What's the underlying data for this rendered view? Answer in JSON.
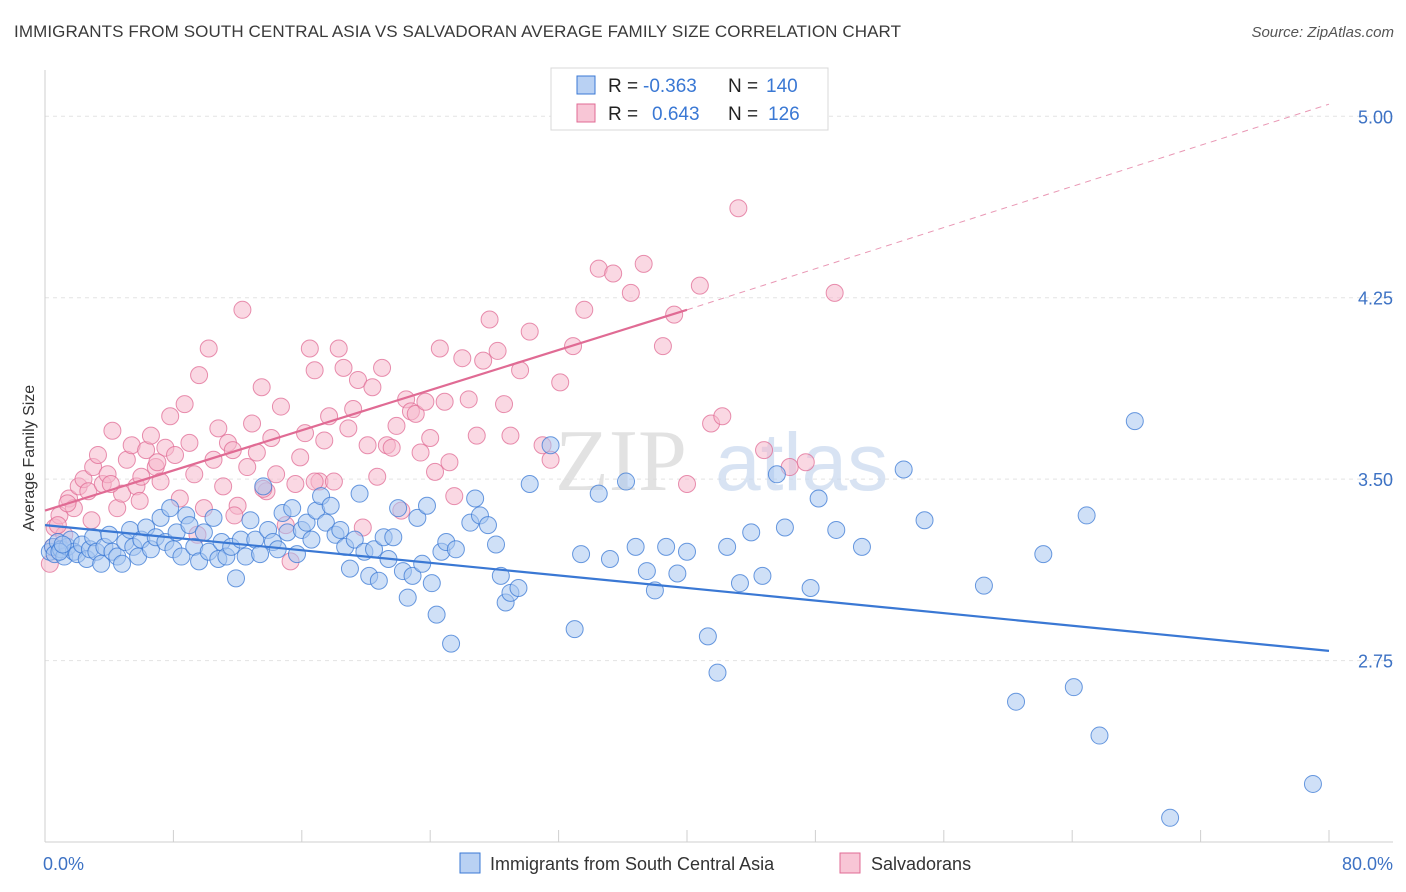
{
  "header": {
    "title": "IMMIGRANTS FROM SOUTH CENTRAL ASIA VS SALVADORAN AVERAGE FAMILY SIZE CORRELATION CHART",
    "source": "Source: ZipAtlas.com"
  },
  "watermark": {
    "part1": "ZIP",
    "part2": "atlas"
  },
  "chart_data": {
    "type": "scatter",
    "title": "IMMIGRANTS FROM SOUTH CENTRAL ASIA VS SALVADORAN AVERAGE FAMILY SIZE CORRELATION CHART",
    "xlabel": "",
    "ylabel": "Average Family Size",
    "xlim": [
      0,
      80
    ],
    "ylim": [
      2.0,
      5.15
    ],
    "x_tick_labels": [
      "0.0%",
      "80.0%"
    ],
    "y_ticks": [
      2.75,
      3.5,
      4.25,
      5.0
    ],
    "y_tick_labels": [
      "2.75",
      "3.50",
      "4.25",
      "5.00"
    ],
    "grid": true,
    "legend_position": "top-center",
    "bottom_legend_position": "bottom-center",
    "colors": {
      "blue": "#3a78d4",
      "pink": "#e06b94",
      "blue_fill": "#a8c6f0",
      "pink_fill": "#f6b8cc",
      "axis_label": "#3d72c4"
    },
    "stats": [
      {
        "r_label": "R =",
        "r_value": "-0.363",
        "n_label": "N =",
        "n_value": "140"
      },
      {
        "r_label": "R =",
        "r_value": "0.643",
        "n_label": "N =",
        "n_value": "126"
      }
    ],
    "series": [
      {
        "name": "Immigrants from South Central Asia",
        "color": "#3a78d4",
        "trend": {
          "x": [
            0,
            80
          ],
          "y": [
            3.31,
            2.79
          ],
          "dashed_to": null
        },
        "points": [
          [
            0.3,
            3.2
          ],
          [
            0.5,
            3.22
          ],
          [
            0.6,
            3.19
          ],
          [
            0.8,
            3.24
          ],
          [
            1,
            3.21
          ],
          [
            1.2,
            3.18
          ],
          [
            1.4,
            3.22
          ],
          [
            1.6,
            3.25
          ],
          [
            1.8,
            3.2
          ],
          [
            2,
            3.19
          ],
          [
            2.3,
            3.23
          ],
          [
            2.6,
            3.17
          ],
          [
            2.8,
            3.21
          ],
          [
            3,
            3.26
          ],
          [
            3.2,
            3.2
          ],
          [
            3.5,
            3.15
          ],
          [
            3.7,
            3.22
          ],
          [
            4,
            3.27
          ],
          [
            4.2,
            3.2
          ],
          [
            4.5,
            3.18
          ],
          [
            4.8,
            3.15
          ],
          [
            5,
            3.24
          ],
          [
            5.3,
            3.29
          ],
          [
            5.5,
            3.22
          ],
          [
            5.8,
            3.18
          ],
          [
            6,
            3.25
          ],
          [
            6.3,
            3.3
          ],
          [
            6.6,
            3.21
          ],
          [
            6.9,
            3.26
          ],
          [
            7.2,
            3.34
          ],
          [
            7.5,
            3.24
          ],
          [
            7.8,
            3.38
          ],
          [
            8,
            3.21
          ],
          [
            8.2,
            3.28
          ],
          [
            8.5,
            3.18
          ],
          [
            8.8,
            3.35
          ],
          [
            9,
            3.31
          ],
          [
            9.3,
            3.22
          ],
          [
            9.6,
            3.16
          ],
          [
            9.9,
            3.28
          ],
          [
            10.2,
            3.2
          ],
          [
            10.5,
            3.34
          ],
          [
            10.8,
            3.17
          ],
          [
            11,
            3.24
          ],
          [
            11.3,
            3.18
          ],
          [
            11.6,
            3.22
          ],
          [
            11.9,
            3.09
          ],
          [
            12.2,
            3.25
          ],
          [
            12.5,
            3.18
          ],
          [
            12.8,
            3.33
          ],
          [
            13.1,
            3.25
          ],
          [
            13.4,
            3.19
          ],
          [
            13.6,
            3.47
          ],
          [
            13.9,
            3.29
          ],
          [
            14.2,
            3.24
          ],
          [
            14.5,
            3.21
          ],
          [
            14.8,
            3.36
          ],
          [
            15.1,
            3.28
          ],
          [
            15.4,
            3.38
          ],
          [
            15.7,
            3.19
          ],
          [
            16,
            3.29
          ],
          [
            16.3,
            3.32
          ],
          [
            16.6,
            3.25
          ],
          [
            16.9,
            3.37
          ],
          [
            17.2,
            3.43
          ],
          [
            17.5,
            3.32
          ],
          [
            17.8,
            3.39
          ],
          [
            18.1,
            3.27
          ],
          [
            18.4,
            3.29
          ],
          [
            18.7,
            3.22
          ],
          [
            19,
            3.13
          ],
          [
            19.3,
            3.25
          ],
          [
            19.6,
            3.44
          ],
          [
            19.9,
            3.2
          ],
          [
            20.2,
            3.1
          ],
          [
            20.5,
            3.21
          ],
          [
            20.8,
            3.08
          ],
          [
            21.1,
            3.26
          ],
          [
            21.4,
            3.17
          ],
          [
            21.7,
            3.26
          ],
          [
            22,
            3.38
          ],
          [
            22.3,
            3.12
          ],
          [
            22.6,
            3.01
          ],
          [
            22.9,
            3.1
          ],
          [
            23.2,
            3.34
          ],
          [
            23.5,
            3.15
          ],
          [
            23.8,
            3.39
          ],
          [
            24.1,
            3.07
          ],
          [
            24.4,
            2.94
          ],
          [
            24.7,
            3.2
          ],
          [
            25,
            3.24
          ],
          [
            25.3,
            2.82
          ],
          [
            25.6,
            3.21
          ],
          [
            26.5,
            3.32
          ],
          [
            26.8,
            3.42
          ],
          [
            27.1,
            3.35
          ],
          [
            27.6,
            3.31
          ],
          [
            28.1,
            3.23
          ],
          [
            28.4,
            3.1
          ],
          [
            28.7,
            2.99
          ],
          [
            29,
            3.03
          ],
          [
            29.5,
            3.05
          ],
          [
            30.2,
            3.48
          ],
          [
            31.5,
            3.64
          ],
          [
            33,
            2.88
          ],
          [
            33.4,
            3.19
          ],
          [
            34.5,
            3.44
          ],
          [
            35.2,
            3.17
          ],
          [
            36.2,
            3.49
          ],
          [
            36.8,
            3.22
          ],
          [
            37.5,
            3.12
          ],
          [
            38,
            3.04
          ],
          [
            38.7,
            3.22
          ],
          [
            39.4,
            3.11
          ],
          [
            40,
            3.2
          ],
          [
            41.3,
            2.85
          ],
          [
            41.9,
            2.7
          ],
          [
            42.5,
            3.22
          ],
          [
            43.3,
            3.07
          ],
          [
            44,
            3.28
          ],
          [
            44.7,
            3.1
          ],
          [
            45.6,
            3.52
          ],
          [
            46.1,
            3.3
          ],
          [
            47.7,
            3.05
          ],
          [
            48.2,
            3.42
          ],
          [
            49.3,
            3.29
          ],
          [
            50.9,
            3.22
          ],
          [
            53.5,
            3.54
          ],
          [
            54.8,
            3.33
          ],
          [
            58.5,
            3.06
          ],
          [
            60.5,
            2.58
          ],
          [
            62.2,
            3.19
          ],
          [
            64.1,
            2.64
          ],
          [
            64.9,
            3.35
          ],
          [
            65.7,
            2.44
          ],
          [
            67.9,
            3.74
          ],
          [
            70.1,
            2.1
          ],
          [
            79,
            2.24
          ],
          [
            0.9,
            3.2
          ],
          [
            1.1,
            3.23
          ]
        ]
      },
      {
        "name": "Salvadorans",
        "color": "#e06b94",
        "trend": {
          "x": [
            0,
            40
          ],
          "y": [
            3.37,
            4.2
          ],
          "dashed_to": [
            80,
            5.05
          ]
        },
        "points": [
          [
            0.3,
            3.15
          ],
          [
            0.6,
            3.3
          ],
          [
            0.9,
            3.35
          ],
          [
            1.2,
            3.27
          ],
          [
            1.5,
            3.42
          ],
          [
            1.8,
            3.38
          ],
          [
            2.1,
            3.47
          ],
          [
            2.4,
            3.5
          ],
          [
            2.7,
            3.45
          ],
          [
            3,
            3.55
          ],
          [
            3.3,
            3.6
          ],
          [
            3.6,
            3.48
          ],
          [
            3.9,
            3.52
          ],
          [
            4.2,
            3.7
          ],
          [
            4.5,
            3.38
          ],
          [
            4.8,
            3.44
          ],
          [
            5.1,
            3.58
          ],
          [
            5.4,
            3.64
          ],
          [
            5.7,
            3.47
          ],
          [
            6,
            3.51
          ],
          [
            6.3,
            3.62
          ],
          [
            6.6,
            3.68
          ],
          [
            6.9,
            3.55
          ],
          [
            7.2,
            3.49
          ],
          [
            7.5,
            3.63
          ],
          [
            7.8,
            3.76
          ],
          [
            8.1,
            3.6
          ],
          [
            8.4,
            3.42
          ],
          [
            8.7,
            3.81
          ],
          [
            9,
            3.65
          ],
          [
            9.3,
            3.52
          ],
          [
            9.6,
            3.93
          ],
          [
            9.9,
            3.38
          ],
          [
            10.2,
            4.04
          ],
          [
            10.5,
            3.58
          ],
          [
            10.8,
            3.71
          ],
          [
            11.1,
            3.47
          ],
          [
            11.4,
            3.65
          ],
          [
            11.7,
            3.62
          ],
          [
            12,
            3.39
          ],
          [
            12.3,
            4.2
          ],
          [
            12.6,
            3.55
          ],
          [
            12.9,
            3.73
          ],
          [
            13.2,
            3.61
          ],
          [
            13.5,
            3.88
          ],
          [
            13.8,
            3.45
          ],
          [
            14.1,
            3.67
          ],
          [
            14.4,
            3.52
          ],
          [
            14.7,
            3.8
          ],
          [
            15,
            3.31
          ],
          [
            15.3,
            3.16
          ],
          [
            15.6,
            3.48
          ],
          [
            15.9,
            3.59
          ],
          [
            16.2,
            3.69
          ],
          [
            16.5,
            4.04
          ],
          [
            16.8,
            3.95
          ],
          [
            17.1,
            3.49
          ],
          [
            17.4,
            3.66
          ],
          [
            17.7,
            3.76
          ],
          [
            18,
            3.49
          ],
          [
            18.3,
            4.04
          ],
          [
            18.6,
            3.96
          ],
          [
            18.9,
            3.71
          ],
          [
            19.2,
            3.79
          ],
          [
            19.5,
            3.91
          ],
          [
            19.8,
            3.3
          ],
          [
            20.1,
            3.64
          ],
          [
            20.4,
            3.88
          ],
          [
            20.7,
            3.51
          ],
          [
            21,
            3.96
          ],
          [
            21.3,
            3.64
          ],
          [
            21.6,
            3.63
          ],
          [
            21.9,
            3.72
          ],
          [
            22.2,
            3.37
          ],
          [
            22.5,
            3.83
          ],
          [
            22.8,
            3.78
          ],
          [
            23.1,
            3.77
          ],
          [
            23.4,
            3.61
          ],
          [
            23.7,
            3.82
          ],
          [
            24,
            3.67
          ],
          [
            24.3,
            3.53
          ],
          [
            24.6,
            4.04
          ],
          [
            24.9,
            3.82
          ],
          [
            25.2,
            3.57
          ],
          [
            25.5,
            3.43
          ],
          [
            26,
            4.0
          ],
          [
            26.4,
            3.83
          ],
          [
            26.9,
            3.68
          ],
          [
            27.3,
            3.99
          ],
          [
            27.7,
            4.16
          ],
          [
            28.2,
            4.03
          ],
          [
            28.6,
            3.81
          ],
          [
            29,
            3.68
          ],
          [
            29.6,
            3.95
          ],
          [
            30.2,
            4.11
          ],
          [
            31,
            3.64
          ],
          [
            31.5,
            3.58
          ],
          [
            32.1,
            3.9
          ],
          [
            32.9,
            4.05
          ],
          [
            33.6,
            4.2
          ],
          [
            34.5,
            4.37
          ],
          [
            35.4,
            4.35
          ],
          [
            36.5,
            4.27
          ],
          [
            37.3,
            4.39
          ],
          [
            38.5,
            4.05
          ],
          [
            39.2,
            4.18
          ],
          [
            40,
            3.48
          ],
          [
            40.8,
            4.3
          ],
          [
            41.5,
            3.73
          ],
          [
            42.2,
            3.76
          ],
          [
            43.2,
            4.62
          ],
          [
            44.8,
            3.62
          ],
          [
            46.4,
            3.55
          ],
          [
            47.4,
            3.57
          ],
          [
            49.2,
            4.27
          ],
          [
            0.5,
            3.22
          ],
          [
            0.8,
            3.31
          ],
          [
            1.4,
            3.4
          ],
          [
            2.9,
            3.33
          ],
          [
            4.1,
            3.48
          ],
          [
            5.9,
            3.41
          ],
          [
            7,
            3.57
          ],
          [
            9.5,
            3.27
          ],
          [
            11.8,
            3.35
          ],
          [
            13.6,
            3.46
          ],
          [
            16.8,
            3.49
          ]
        ]
      }
    ]
  }
}
